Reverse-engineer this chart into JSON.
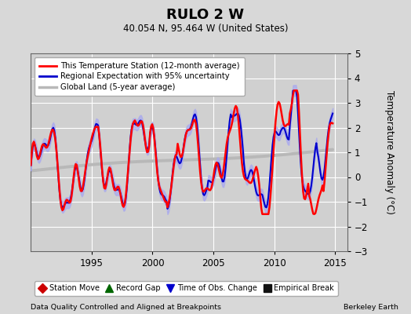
{
  "title": "RULO 2 W",
  "subtitle": "40.054 N, 95.464 W (United States)",
  "ylabel": "Temperature Anomaly (°C)",
  "footer_left": "Data Quality Controlled and Aligned at Breakpoints",
  "footer_right": "Berkeley Earth",
  "xlim": [
    1990.0,
    2016.0
  ],
  "ylim": [
    -3.0,
    5.0
  ],
  "xticks": [
    1995,
    2000,
    2005,
    2010,
    2015
  ],
  "yticks": [
    -3,
    -2,
    -1,
    0,
    1,
    2,
    3,
    4,
    5
  ],
  "bg_color": "#d8d8d8",
  "plot_bg_color": "#d0d0d0",
  "grid_color": "#ffffff",
  "red_line_color": "#ff0000",
  "blue_line_color": "#0000cc",
  "blue_fill_color": "#aaaaee",
  "gray_line_color": "#b8b8b8",
  "legend1_labels": [
    "This Temperature Station (12-month average)",
    "Regional Expectation with 95% uncertainty",
    "Global Land (5-year average)"
  ],
  "legend2_items": [
    {
      "label": "Station Move",
      "marker": "D",
      "color": "#cc0000"
    },
    {
      "label": "Record Gap",
      "marker": "^",
      "color": "#006600"
    },
    {
      "label": "Time of Obs. Change",
      "marker": "v",
      "color": "#0000cc"
    },
    {
      "label": "Empirical Break",
      "marker": "s",
      "color": "#111111"
    }
  ]
}
